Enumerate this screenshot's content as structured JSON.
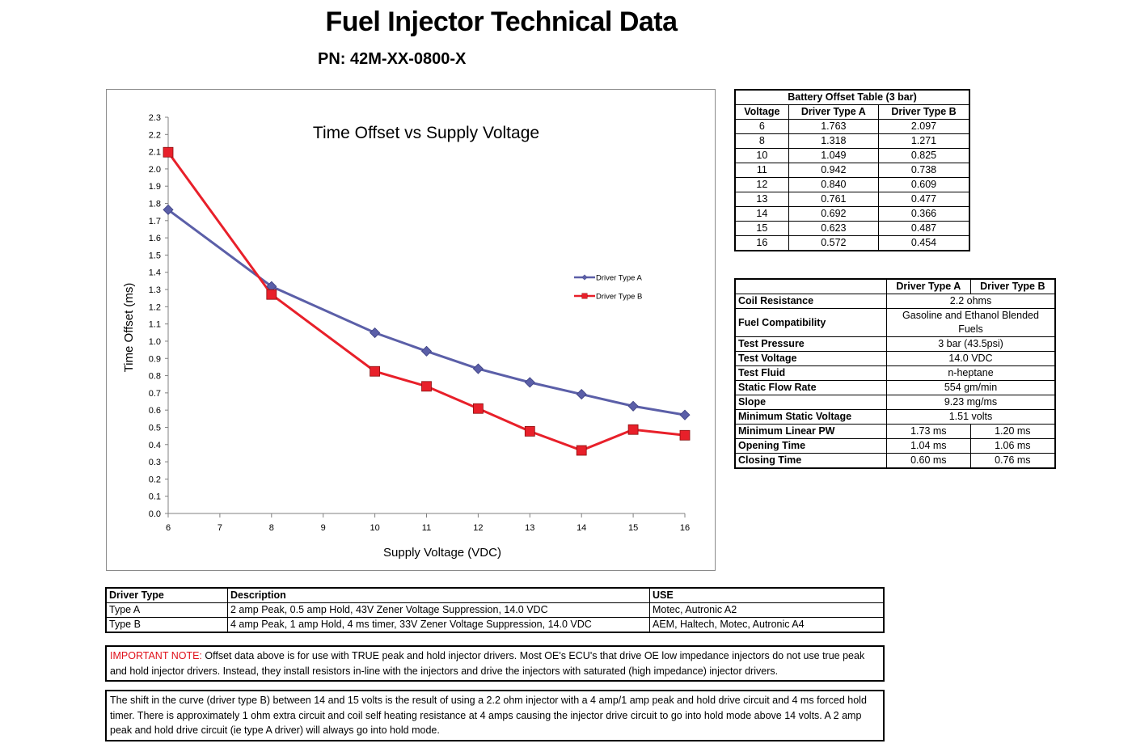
{
  "header": {
    "title": "Fuel Injector Technical Data",
    "pn": "PN: 42M-XX-0800-X"
  },
  "chart_data": {
    "type": "line",
    "title": "Time Offset vs Supply Voltage",
    "xlabel": "Supply Voltage (VDC)",
    "ylabel": "Time Offset (ms)",
    "x_ticks": [
      "6",
      "7",
      "8",
      "9",
      "10",
      "11",
      "12",
      "13",
      "14",
      "15",
      "16"
    ],
    "y_ticks": [
      "0.0",
      "0.1",
      "0.2",
      "0.3",
      "0.4",
      "0.5",
      "0.6",
      "0.7",
      "0.8",
      "0.9",
      "1.0",
      "1.1",
      "1.2",
      "1.3",
      "1.4",
      "1.5",
      "1.6",
      "1.7",
      "1.8",
      "1.9",
      "2.0",
      "2.1",
      "2.2",
      "2.3"
    ],
    "xlim": [
      6,
      16
    ],
    "ylim": [
      0,
      2.3
    ],
    "grid": false,
    "legend": "right",
    "series": [
      {
        "name": "Driver Type A",
        "color": "#5b5fa8",
        "marker": "diamond",
        "x": [
          6,
          8,
          10,
          11,
          12,
          13,
          14,
          15,
          16
        ],
        "y": [
          1.763,
          1.318,
          1.049,
          0.942,
          0.84,
          0.761,
          0.692,
          0.623,
          0.572
        ]
      },
      {
        "name": "Driver Type B",
        "color": "#e8202a",
        "marker": "square",
        "x": [
          6,
          8,
          10,
          11,
          12,
          13,
          14,
          15,
          16
        ],
        "y": [
          2.097,
          1.271,
          0.825,
          0.738,
          0.609,
          0.477,
          0.366,
          0.487,
          0.454
        ]
      }
    ]
  },
  "battery_table": {
    "title": "Battery Offset Table (3 bar)",
    "headers": [
      "Voltage",
      "Driver Type A",
      "Driver Type B"
    ],
    "rows": [
      [
        "6",
        "1.763",
        "2.097"
      ],
      [
        "8",
        "1.318",
        "1.271"
      ],
      [
        "10",
        "1.049",
        "0.825"
      ],
      [
        "11",
        "0.942",
        "0.738"
      ],
      [
        "12",
        "0.840",
        "0.609"
      ],
      [
        "13",
        "0.761",
        "0.477"
      ],
      [
        "14",
        "0.692",
        "0.366"
      ],
      [
        "15",
        "0.623",
        "0.487"
      ],
      [
        "16",
        "0.572",
        "0.454"
      ]
    ]
  },
  "spec_table": {
    "headers": [
      "",
      "Driver Type A",
      "Driver Type B"
    ],
    "rows": [
      {
        "label": "Coil Resistance",
        "values": [
          "2.2 ohms"
        ]
      },
      {
        "label": "Fuel Compatibility",
        "values": [
          "Gasoline and Ethanol Blended Fuels"
        ]
      },
      {
        "label": "Test Pressure",
        "values": [
          "3 bar (43.5psi)"
        ]
      },
      {
        "label": "Test Voltage",
        "values": [
          "14.0 VDC"
        ]
      },
      {
        "label": "Test Fluid",
        "values": [
          "n-heptane"
        ]
      },
      {
        "label": "Static Flow Rate",
        "values": [
          "554 gm/min"
        ]
      },
      {
        "label": "Slope",
        "values": [
          "9.23 mg/ms"
        ]
      },
      {
        "label": "Minimum Static Voltage",
        "values": [
          "1.51 volts"
        ]
      },
      {
        "label": "Minimum Linear PW",
        "values": [
          "1.73 ms",
          "1.20 ms"
        ]
      },
      {
        "label": "Opening Time",
        "values": [
          "1.04 ms",
          "1.06 ms"
        ]
      },
      {
        "label": "Closing Time",
        "values": [
          "0.60 ms",
          "0.76 ms"
        ]
      }
    ]
  },
  "driver_table": {
    "headers": [
      "Driver Type",
      "Description",
      "USE"
    ],
    "rows": [
      [
        "Type A",
        "2 amp Peak, 0.5 amp Hold, 43V Zener Voltage Suppression, 14.0 VDC",
        "Motec, Autronic A2"
      ],
      [
        "Type B",
        "4 amp Peak, 1 amp Hold, 4 ms timer, 33V Zener Voltage Suppression, 14.0 VDC",
        "AEM, Haltech, Motec, Autronic A4"
      ]
    ]
  },
  "notes": {
    "important_label": "IMPORTANT NOTE:",
    "important_text": " Offset data above is for use with TRUE peak and hold injector drivers.  Most OE's ECU's that drive OE low impedance injectors do not use true peak and hold injector drivers.  Instead, they install resistors in-line with the injectors and drive the injectors with saturated (high impedance) injector drivers.",
    "shift_text": "The shift in the curve (driver type B) between 14 and 15 volts is the result of using a 2.2 ohm injector with a 4 amp/1 amp peak and hold drive circuit and 4 ms forced hold timer. There is approximately 1 ohm extra circuit and coil self heating resistance at 4 amps causing the injector drive circuit to go into hold mode above 14 volts. A 2 amp peak and hold drive circuit (ie type A driver) will always go into hold mode."
  }
}
